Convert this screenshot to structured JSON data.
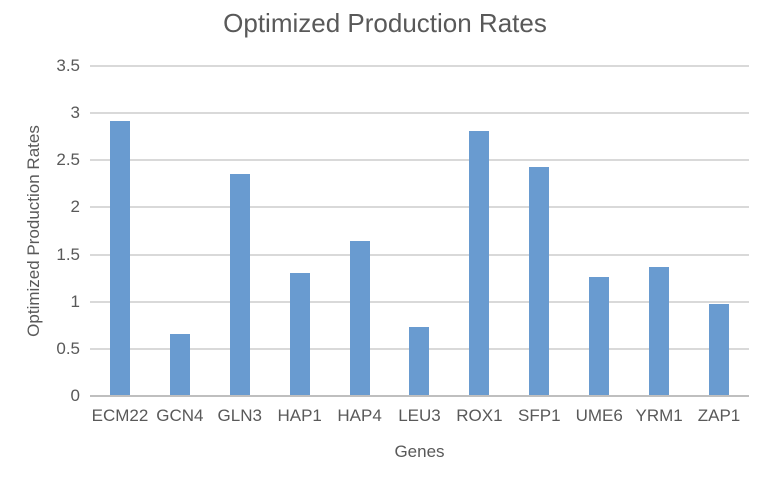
{
  "chart_data": {
    "type": "bar",
    "title": "Optimized Production Rates",
    "xlabel": "Genes",
    "ylabel": "Optimized Production Rates",
    "categories": [
      "ECM22",
      "GCN4",
      "GLN3",
      "HAP1",
      "HAP4",
      "LEU3",
      "ROX1",
      "SFP1",
      "UME6",
      "YRM1",
      "ZAP1"
    ],
    "values": [
      2.92,
      0.66,
      2.35,
      1.31,
      1.64,
      0.73,
      2.81,
      2.43,
      1.26,
      1.37,
      0.98
    ],
    "ylim": [
      0,
      3.5
    ],
    "ytick_step": 0.5,
    "ytick_labels": [
      "0",
      "0.5",
      "1",
      "1.5",
      "2",
      "2.5",
      "3",
      "3.5"
    ],
    "grid": true,
    "legend": false,
    "colors": {
      "bar": "#699BD0",
      "gridline": "#D9D9D9",
      "axis_line": "#BFBFBF",
      "text": "#595959"
    }
  }
}
